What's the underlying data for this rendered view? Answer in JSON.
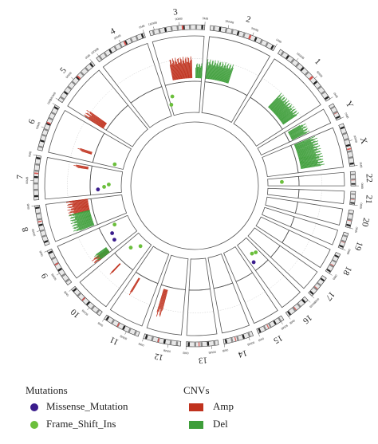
{
  "chromosomes": [
    {
      "name": "1",
      "length": 249
    },
    {
      "name": "2",
      "length": 243
    },
    {
      "name": "3",
      "length": 198
    },
    {
      "name": "4",
      "length": 191
    },
    {
      "name": "5",
      "length": 181
    },
    {
      "name": "6",
      "length": 171
    },
    {
      "name": "7",
      "length": 159
    },
    {
      "name": "8",
      "length": 146
    },
    {
      "name": "9",
      "length": 141
    },
    {
      "name": "10",
      "length": 136
    },
    {
      "name": "11",
      "length": 135
    },
    {
      "name": "12",
      "length": 134
    },
    {
      "name": "13",
      "length": 115
    },
    {
      "name": "14",
      "length": 107
    },
    {
      "name": "15",
      "length": 102
    },
    {
      "name": "16",
      "length": 90
    },
    {
      "name": "17",
      "length": 81
    },
    {
      "name": "18",
      "length": 78
    },
    {
      "name": "19",
      "length": 59
    },
    {
      "name": "20",
      "length": 63
    },
    {
      "name": "21",
      "length": 48
    },
    {
      "name": "22",
      "length": 51
    },
    {
      "name": "X",
      "length": 155
    },
    {
      "name": "Y",
      "length": 59
    }
  ],
  "tick_labels": [
    "0MB",
    "90MB",
    "180MB"
  ],
  "mutations": [
    {
      "type": "Missense_Mutation",
      "chrom": "16",
      "pos": 20,
      "level": 0.75
    },
    {
      "type": "Frame_Shift_Ins",
      "chrom": "16",
      "pos": 45,
      "level": 0.5
    },
    {
      "type": "Frame_Shift_Ins",
      "chrom": "16",
      "pos": 68,
      "level": 0.55
    },
    {
      "type": "Frame_Shift_Ins",
      "chrom": "22",
      "pos": 25,
      "level": 0.45
    },
    {
      "type": "Frame_Shift_Ins",
      "chrom": "10",
      "pos": 40,
      "level": 0.5
    },
    {
      "type": "Frame_Shift_Ins",
      "chrom": "10",
      "pos": 80,
      "level": 0.25
    },
    {
      "type": "Frame_Shift_Ins",
      "chrom": "9",
      "pos": 20,
      "level": 0.5
    },
    {
      "type": "Missense_Mutation",
      "chrom": "9",
      "pos": 60,
      "level": 0.7
    },
    {
      "type": "Missense_Mutation",
      "chrom": "9",
      "pos": 100,
      "level": 0.75
    },
    {
      "type": "Missense_Mutation",
      "chrom": "7",
      "pos": 130,
      "level": 0.75
    },
    {
      "type": "Frame_Shift_Ins",
      "chrom": "7",
      "pos": 115,
      "level": 0.55
    },
    {
      "type": "Frame_Shift_Ins",
      "chrom": "7",
      "pos": 100,
      "level": 0.4
    },
    {
      "type": "Frame_Shift_Ins",
      "chrom": "6",
      "pos": 150,
      "level": 0.3
    },
    {
      "type": "Frame_Shift_Ins",
      "chrom": "3",
      "pos": 195,
      "level": 0.35
    },
    {
      "type": "Frame_Shift_Ins",
      "chrom": "3",
      "pos": 175,
      "level": 0.6
    }
  ],
  "cnvs": [
    {
      "type": "Amp",
      "chrom": "12",
      "start": 20,
      "end": 40,
      "level": 0.7
    },
    {
      "type": "Amp",
      "chrom": "11",
      "start": 30,
      "end": 36,
      "level": 0.5
    },
    {
      "type": "Amp",
      "chrom": "10",
      "start": 60,
      "end": 64,
      "level": 0.4
    },
    {
      "type": "Amp",
      "chrom": "9",
      "start": 120,
      "end": 140,
      "level": 0.5
    },
    {
      "type": "Del",
      "chrom": "9",
      "start": 110,
      "end": 140,
      "level": 0.4
    },
    {
      "type": "Amp",
      "chrom": "8",
      "start": 0,
      "end": 60,
      "level": 0.55
    },
    {
      "type": "Del",
      "chrom": "8",
      "start": 60,
      "end": 140,
      "level": 0.55
    },
    {
      "type": "Amp",
      "chrom": "7",
      "start": 10,
      "end": 20,
      "level": 0.4
    },
    {
      "type": "Amp",
      "chrom": "6",
      "start": 120,
      "end": 130,
      "level": 0.4
    },
    {
      "type": "Amp",
      "chrom": "5",
      "start": 150,
      "end": 181,
      "level": 0.6
    },
    {
      "type": "Amp",
      "chrom": "3",
      "start": 50,
      "end": 150,
      "level": 0.55
    },
    {
      "type": "Del",
      "chrom": "3",
      "start": 0,
      "end": 30,
      "level": 0.4
    },
    {
      "type": "Del",
      "chrom": "2",
      "start": 120,
      "end": 240,
      "level": 0.5
    },
    {
      "type": "Del",
      "chrom": "1",
      "start": 20,
      "end": 140,
      "level": 0.5
    },
    {
      "type": "Del",
      "chrom": "X",
      "start": 20,
      "end": 150,
      "level": 0.6
    },
    {
      "type": "Del",
      "chrom": "Y",
      "start": 5,
      "end": 50,
      "level": 0.5
    }
  ],
  "colors": {
    "Missense_Mutation": "#3a1c8c",
    "Frame_Shift_Ins": "#6bbf3c",
    "Amp": "#c0321e",
    "Del": "#3e9e3a",
    "ring": "#555555",
    "centromere": "#d9534f"
  },
  "legend": {
    "mutations_title": "Mutations",
    "cnvs_title": "CNVs",
    "missense_label": "Missense_Mutation",
    "frameshift_label": "Frame_Shift_Ins",
    "amp_label": "Amp",
    "del_label": "Del"
  }
}
